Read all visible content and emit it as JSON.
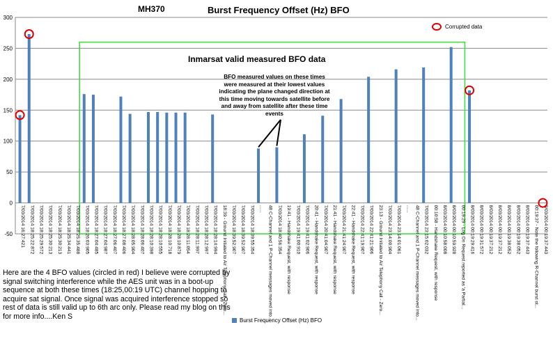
{
  "header": {
    "left_title": "MH370",
    "title": "Burst Frequency Offset (Hz) BFO"
  },
  "annotations": {
    "inmarsat": "Inmarsat valid measured BFO data",
    "bfo_note": "BFO measured values on these times were measured at their lowest values indicating the plane changed direction at this time moving towards satellite before and away from satellite after these time events",
    "corrupted_legend": "Corrupted data",
    "footnote": "Here are the 4 BFO values (circled in red) I believe were corrupted by signal switching interference while the AES unit was in a boot-up sequence at both these times (18:25,00:19 UTC) channel hopping to acquire sat signal. Once signal was acquired interference stopped so rest of data is still valid up to 6th arc only. Please read my blog on this for more info....Ken S"
  },
  "colors": {
    "bar": "#4f81bd",
    "circle": "#e00000",
    "box": "#33dd33",
    "grid": "#8a8a8a"
  },
  "chart_data": {
    "type": "bar",
    "title": "Burst Frequency Offset (Hz) BFO",
    "ylim": [
      -50,
      300
    ],
    "yticks": [
      -50,
      0,
      50,
      100,
      150,
      200,
      250,
      300
    ],
    "grid": true,
    "legend": "bottom",
    "series": [
      {
        "name": "Burst Frequency Offset (Hz) BFO"
      }
    ],
    "categories": [
      "7/03/2014 16:27:421",
      "7/03/2014 18:25:22:872",
      "7/03/2014 18:25:29:572",
      "7/03/2014 18:25:30:213",
      "7/03/2014 18:25:30:213",
      "7/03/2014 18:25:34:441",
      "7/03/2014 18:25:35:488",
      "7/03/2014 18:26:03:905",
      "7/03/2014 18:27:04:485",
      "7/03/2014 18:27:04:987",
      "7/03/2014 18:27:06:407",
      "7/03/2014 18:27:08:406",
      "7/03/2014 18:28:05:904",
      "7/03/2014 18:28:06:407",
      "7/03/2014 18:28:10:398",
      "7/03/2014 18:28:10:555",
      "7/03/2014 18:28:10:718",
      "7/03/2014 18:28:10:879",
      "7/03/2014 18:28:11:054",
      "7/03/2014 18:28:11:997",
      "7/03/2014 18:28:12:997",
      "7/03/2014 18:28:14:994",
      "18:39 - Ground Initiated to Air Telephony Call - Zero...",
      "7/03/2014 18:39:52:907",
      "7/03/2014 18:39:52:907",
      "7/03/2014 18:39:55:354",
      "......",
      "48 C-Channel and 1 P-Channel messages moved into...",
      "7/03/2014 18:40:56:354",
      "19:41 - Handshake Request, with response",
      "7/03/2014 19:41:00:910",
      "7/03/2014 19:41:02:906",
      "20:41 - Handshake Request, with response",
      "7/03/2014 20:41:04:907",
      "21:41 - Handshake Request, with response",
      "7/03/2014 21:41:24:907",
      "22:41 - Handshake Request, with response",
      "7/03/2014 22:41:19:907",
      "7/03/2014 22:41:21:906",
      "23:13 - Ground Initiated to Air Telephony Call - Zero...",
      "7/03/2014 23:14:00:904",
      "7/03/2014 23:14:01:061",
      "......",
      "48 C-Channel and 1 P-Channel messages moved into...",
      "7/03/2014 23:15:02:032",
      "00:10:58 - Handshake Request, with response",
      "8/03/2014 00:10:58:008",
      "8/03/2014 00:10:59:928",
      "00:19:29 - Log On Request reported as 'a Partial...",
      "8/03/2014 00:19:29:416",
      "8/03/2014 00:19:31:572",
      "8/03/2014 00:19:37:212",
      "8/03/2014 00:19:37:212",
      "8/03/2014 00:19:38:052",
      "8/03/2014 00:19:38:052",
      "8/03/2014 00:19:37:443",
      "00:19:37 - Note the following R-Channel burst st...",
      "8/03/2014 00:19:37:443"
    ],
    "values": [
      142,
      273,
      null,
      null,
      null,
      null,
      null,
      176,
      175,
      null,
      null,
      172,
      144,
      null,
      147,
      147,
      146,
      146,
      146,
      null,
      null,
      143,
      null,
      null,
      null,
      null,
      88,
      null,
      90,
      null,
      null,
      111,
      null,
      141,
      null,
      168,
      null,
      null,
      204,
      null,
      null,
      216,
      null,
      null,
      219,
      null,
      null,
      252,
      null,
      182,
      null,
      null,
      null,
      null,
      null,
      null,
      null,
      0
    ],
    "corrupted_indices": [
      0,
      1,
      49,
      57
    ],
    "measured_bfo_box": {
      "from_index": 7,
      "to_index": 48,
      "y_range": [
        -50,
        260
      ]
    },
    "arrows_to_indices": [
      26,
      28
    ]
  }
}
